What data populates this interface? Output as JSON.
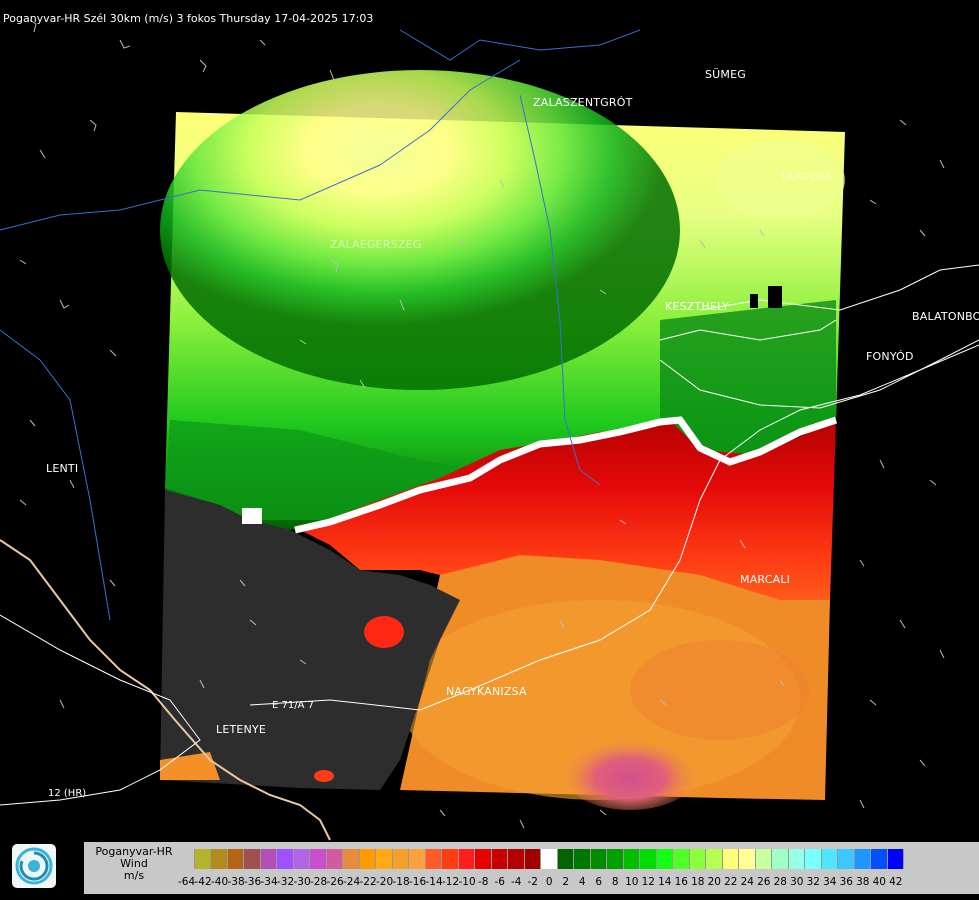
{
  "header": {
    "title": "Poganyvar-HR Szél 30km (m/s) 3 fokos Thursday 17-04-2025 17:03"
  },
  "cities": [
    {
      "name": "SÜMEG"
    },
    {
      "name": "ZALASZENTGRÓT"
    },
    {
      "name": "TAPOLCA"
    },
    {
      "name": "ZALAEGERSZEG"
    },
    {
      "name": "KESZTHELY"
    },
    {
      "name": "BALATONBO"
    },
    {
      "name": "FONYÓD"
    },
    {
      "name": "LENTI"
    },
    {
      "name": "MARCALI"
    },
    {
      "name": "NAGYKANIZSA"
    },
    {
      "name": "LETENYE"
    }
  ],
  "roads": {
    "e71": "E 71/A 7",
    "r12": "12 (HR)"
  },
  "legend": {
    "title_lines": [
      "Poganyvar-HR",
      "Wind",
      "m/s"
    ],
    "tick_labels": [
      "-64",
      "-42",
      "-40",
      "-38",
      "-36",
      "-34",
      "-32",
      "-30",
      "-28",
      "-26",
      "-24",
      "-22",
      "-20",
      "-18",
      "-16",
      "-14",
      "-12",
      "-10",
      "-8",
      "-6",
      "-4",
      "-2",
      "0",
      "2",
      "4",
      "6",
      "8",
      "10",
      "12",
      "14",
      "16",
      "18",
      "20",
      "22",
      "24",
      "26",
      "28",
      "30",
      "32",
      "34",
      "36",
      "38",
      "40",
      "42"
    ],
    "colors": [
      "#c8c8c8",
      "#b4b428",
      "#b48c1e",
      "#b46414",
      "#a05050",
      "#b450b4",
      "#a050ff",
      "#b464e6",
      "#c850c8",
      "#d25aa0",
      "#e68c3c",
      "#ff9b00",
      "#ffaa14",
      "#f5a028",
      "#ffa03c",
      "#ff5a28",
      "#ff3c14",
      "#ff1e1e",
      "#e60000",
      "#c80000",
      "#b40000",
      "#a00000",
      "#ffffff",
      "#006400",
      "#007800",
      "#008c00",
      "#00a000",
      "#00be00",
      "#00dc00",
      "#14ff14",
      "#50ff28",
      "#8cff3c",
      "#b4ff50",
      "#ffff78",
      "#ffff96",
      "#c8ffa0",
      "#a0ffc8",
      "#96ffe6",
      "#78ffff",
      "#50e6ff",
      "#3cc8ff",
      "#1e96ff",
      "#0050ff",
      "#0000ff"
    ]
  }
}
